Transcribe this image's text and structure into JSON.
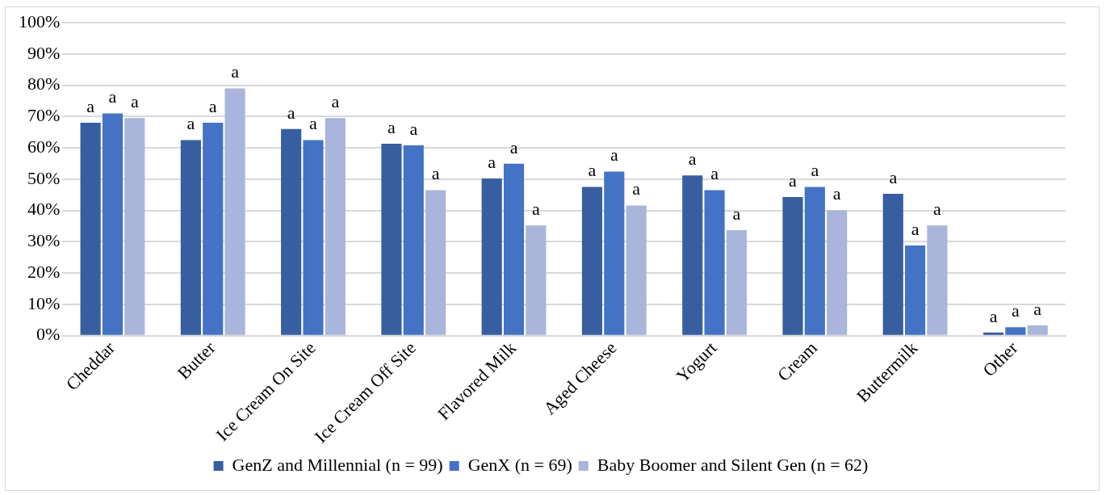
{
  "chart_data": {
    "type": "bar",
    "categories": [
      "Cheddar",
      "Butter",
      "Ice Cream On Site",
      "Ice Cream Off Site",
      "Flavored Milk",
      "Aged Cheese",
      "Yogurt",
      "Cream",
      "Buttermilk",
      "Other"
    ],
    "series": [
      {
        "name": "GenZ and Millennial (n = 99)",
        "color": "#375ea1",
        "values": [
          68,
          62.5,
          66,
          61.3,
          50.2,
          47.5,
          51.2,
          44.3,
          45.3,
          1.0
        ],
        "value_labels": [
          "a",
          "a",
          "a",
          "a",
          "a",
          "a",
          "a",
          "a",
          "a",
          "a"
        ]
      },
      {
        "name": "GenX (n = 69)",
        "color": "#4472c4",
        "values": [
          71,
          68,
          62.5,
          60.8,
          54.9,
          52.4,
          46.5,
          47.5,
          28.8,
          2.7
        ],
        "value_labels": [
          "a",
          "a",
          "a",
          "a",
          "a",
          "a",
          "a",
          "a",
          "a",
          "a"
        ]
      },
      {
        "name": "Baby Boomer and Silent Gen (n = 62)",
        "color": "#a9b5da",
        "values": [
          69.5,
          79,
          69.5,
          46.5,
          35.2,
          41.6,
          33.7,
          40.0,
          35.2,
          3.3
        ],
        "value_labels": [
          "a",
          "a",
          "a",
          "a",
          "a",
          "a",
          "a",
          "a",
          "a",
          "a"
        ]
      }
    ],
    "ylim": [
      0,
      100
    ],
    "yticks": [
      {
        "value": 0,
        "label": "0%"
      },
      {
        "value": 10,
        "label": "10%"
      },
      {
        "value": 20,
        "label": "20%"
      },
      {
        "value": 30,
        "label": "30%"
      },
      {
        "value": 40,
        "label": "40%"
      },
      {
        "value": 50,
        "label": "50%"
      },
      {
        "value": 60,
        "label": "60%"
      },
      {
        "value": 70,
        "label": "70%"
      },
      {
        "value": 80,
        "label": "80%"
      },
      {
        "value": 90,
        "label": "90%"
      },
      {
        "value": 100,
        "label": "100%"
      }
    ],
    "grid": "y",
    "legend": "bottom"
  }
}
